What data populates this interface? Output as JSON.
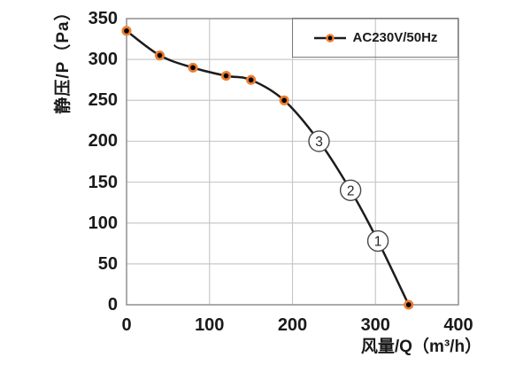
{
  "chart_data": {
    "type": "line",
    "title": "",
    "xlabel": "风量/Q（m³/h）",
    "ylabel": "静压/P（Pa）",
    "xlim": [
      0,
      400
    ],
    "ylim": [
      0,
      350
    ],
    "x_ticks": [
      0,
      100,
      200,
      300,
      400
    ],
    "y_ticks": [
      0,
      50,
      100,
      150,
      200,
      250,
      300,
      350
    ],
    "grid": "on",
    "legend_position": "top-right-inside",
    "series": [
      {
        "name": "AC230V/50Hz",
        "marker_points": [
          [
            0,
            335
          ],
          [
            40,
            305
          ],
          [
            80,
            290
          ],
          [
            120,
            280
          ],
          [
            150,
            275
          ],
          [
            190,
            250
          ],
          [
            340,
            0
          ]
        ],
        "curve_points": [
          [
            0,
            335
          ],
          [
            40,
            305
          ],
          [
            80,
            290
          ],
          [
            120,
            280
          ],
          [
            150,
            275
          ],
          [
            190,
            250
          ],
          [
            232,
            200
          ],
          [
            270,
            140
          ],
          [
            303,
            78
          ],
          [
            340,
            0
          ]
        ]
      }
    ],
    "annotations": [
      {
        "text": "3",
        "glyph": "③",
        "x": 232,
        "y": 200
      },
      {
        "text": "2",
        "glyph": "②",
        "x": 270,
        "y": 140
      },
      {
        "text": "1",
        "glyph": "①",
        "x": 303,
        "y": 78
      }
    ]
  },
  "colors": {
    "background": "#ffffff",
    "gridline": "#c8c8c8",
    "plot_border": "#8f8f8f",
    "series_line": "#1c1c1c",
    "marker_core": "#000000",
    "marker_ring": "#ED7D31",
    "tick_text": "#1a1a1a",
    "annotation_circle_border": "#474747",
    "annotation_text": "#262626",
    "legend_border": "#7a7a7a"
  }
}
